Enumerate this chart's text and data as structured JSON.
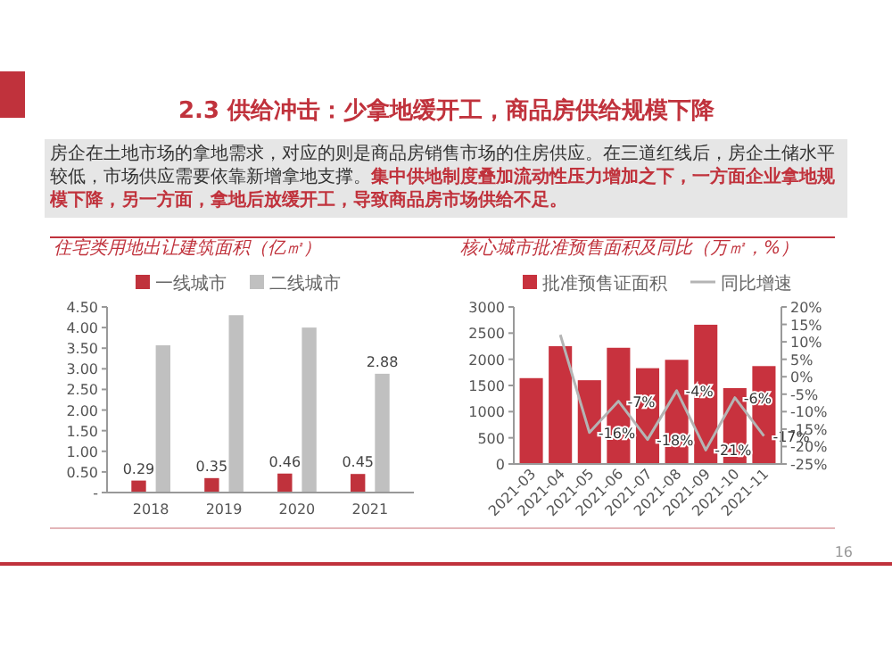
{
  "chart_data": [
    {
      "type": "other",
      "title": "2.3 供给冲击：少拿地缓开工，商品房供给规模下降",
      "annotations": [
        "房企在土地市场的拿地需求，对应的则是商品房销售市场的住房供应。在三道红线后，房企土储水平较低，市场供应需要依靠新增拿地支撑。",
        "集中供地制度叠加流动性压力增加之下，一方面企业拿地规模下降，另一方面，拿地后放缓开工，导致商品房市场供给不足。",
        "16"
      ]
    },
    {
      "type": "bar",
      "title": "住宅类用地出让建筑面积（亿㎡）",
      "categories": [
        "2018",
        "2019",
        "2020",
        "2021"
      ],
      "legend": "top",
      "series": [
        {
          "name": "一线城市",
          "color": "#c0323c",
          "values": [
            0.29,
            0.35,
            0.46,
            0.45
          ],
          "value_labels": [
            "0.29",
            "0.35",
            "0.46",
            "0.45"
          ]
        },
        {
          "name": "二线城市",
          "color": "#c0c0c0",
          "values": [
            3.57,
            4.3,
            4.0,
            2.88
          ],
          "value_labels": [
            null,
            null,
            null,
            "2.88"
          ]
        }
      ],
      "ylim": [
        0,
        4.5
      ],
      "yticks": [
        {
          "value": 0,
          "label": "-"
        },
        {
          "value": 0.5,
          "label": "0.50"
        },
        {
          "value": 1,
          "label": "1.00"
        },
        {
          "value": 1.5,
          "label": "1.50"
        },
        {
          "value": 2,
          "label": "2.00"
        },
        {
          "value": 2.5,
          "label": "2.50"
        },
        {
          "value": 3,
          "label": "3.00"
        },
        {
          "value": 3.5,
          "label": "3.50"
        },
        {
          "value": 4,
          "label": "4.00"
        },
        {
          "value": 4.5,
          "label": "4.50"
        }
      ]
    },
    {
      "type": "bar",
      "title": "核心城市批准预售面积及同比（万㎡，%）",
      "categories": [
        "2021-03",
        "2021-04",
        "2021-05",
        "2021-06",
        "2021-07",
        "2021-08",
        "2021-09",
        "2021-10",
        "2021-11"
      ],
      "legend": "top",
      "series": [
        {
          "name": "批准预售证面积",
          "color": "#c8323e",
          "values": [
            1640,
            2250,
            1600,
            2220,
            1830,
            1990,
            2660,
            1450,
            1870
          ]
        },
        {
          "name": "同比增速",
          "type": "line",
          "axis": "y2",
          "color": "#b4b4b4",
          "values": [
            null,
            12,
            -16,
            -7,
            -18,
            -4,
            -21,
            -6,
            -17
          ],
          "value_labels": [
            null,
            null,
            "-16%",
            "-7%",
            "-18%",
            "-4%",
            "-21%",
            "-6%",
            "-17%"
          ]
        }
      ],
      "ylim": [
        0,
        3000
      ],
      "yticks": [
        0,
        500,
        1000,
        1500,
        2000,
        2500,
        3000
      ],
      "y2lim": [
        -25,
        20
      ],
      "y2ticks": [
        {
          "value": -25,
          "label": "-25%"
        },
        {
          "value": -20,
          "label": "-20%"
        },
        {
          "value": -15,
          "label": "-15%"
        },
        {
          "value": -10,
          "label": "-10%"
        },
        {
          "value": -5,
          "label": "-5%"
        },
        {
          "value": 0,
          "label": "0%"
        },
        {
          "value": 5,
          "label": "5%"
        },
        {
          "value": 10,
          "label": "10%"
        },
        {
          "value": 15,
          "label": "15%"
        },
        {
          "value": 20,
          "label": "20%"
        }
      ]
    }
  ]
}
